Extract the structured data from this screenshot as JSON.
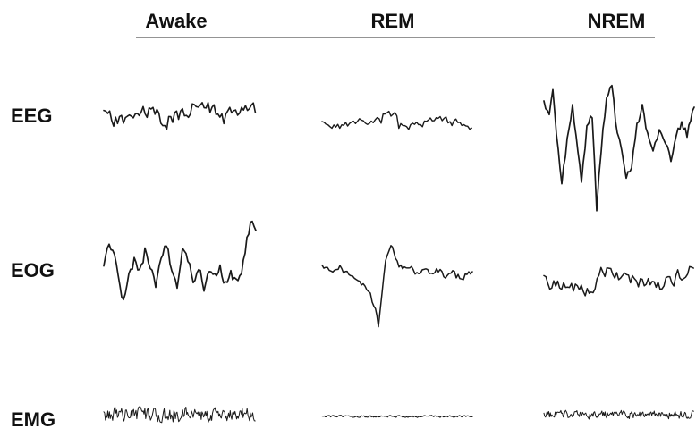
{
  "figure": {
    "stages": [
      {
        "key": "awake",
        "label": "Awake"
      },
      {
        "key": "rem",
        "label": "REM"
      },
      {
        "key": "nrem",
        "label": "NREM"
      }
    ],
    "signals": [
      {
        "key": "eeg",
        "label": "EEG"
      },
      {
        "key": "eog",
        "label": "EOG"
      },
      {
        "key": "emg",
        "label": "EMG"
      }
    ],
    "trace_color": "#1a1a1a",
    "rule_color": "#555555"
  }
}
